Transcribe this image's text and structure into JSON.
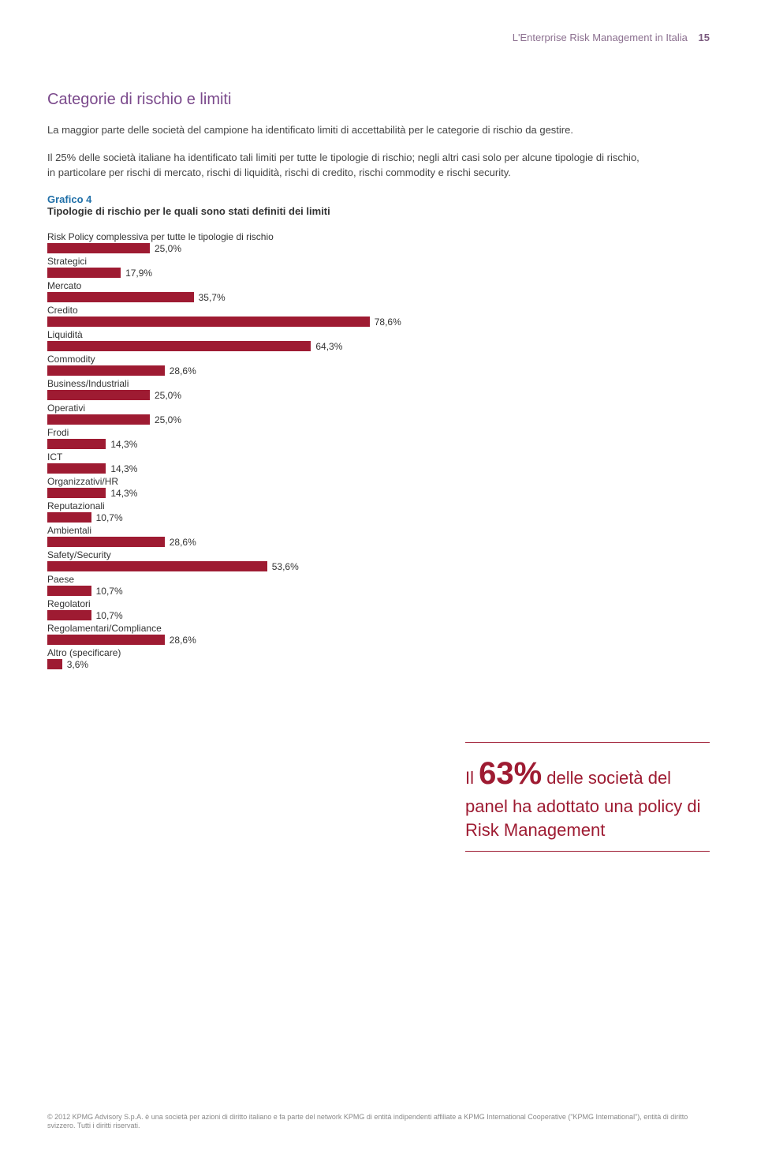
{
  "header": {
    "title": "L'Enterprise Risk Management in Italia",
    "page_number": "15"
  },
  "section": {
    "title": "Categorie di rischio e limiti",
    "para1": "La maggior parte delle società del campione ha identificato limiti di accettabilità per le categorie di rischio da gestire.",
    "para2": "Il 25% delle società italiane ha identificato tali limiti per tutte le tipologie di rischio; negli altri casi solo per alcune tipologie di rischio, in particolare per rischi di mercato, rischi di liquidità, rischi di credito, rischi commodity e rischi security."
  },
  "chart": {
    "caption_num": "Grafico 4",
    "caption_title": "Tipologie di rischio per le quali sono stati definiti dei limiti",
    "bar_color": "#9e1b32",
    "max_pct": 100,
    "bar_area_width": 520,
    "label_fontsize": 12,
    "value_fontsize": 12,
    "items": [
      {
        "label": "Risk Policy complessiva per tutte le tipologie di rischio",
        "value": 25.0,
        "value_label": "25,0%"
      },
      {
        "label": "Strategici",
        "value": 17.9,
        "value_label": "17,9%"
      },
      {
        "label": "Mercato",
        "value": 35.7,
        "value_label": "35,7%"
      },
      {
        "label": "Credito",
        "value": 78.6,
        "value_label": "78,6%"
      },
      {
        "label": "Liquidità",
        "value": 64.3,
        "value_label": "64,3%"
      },
      {
        "label": "Commodity",
        "value": 28.6,
        "value_label": "28,6%"
      },
      {
        "label": "Business/Industriali",
        "value": 25.0,
        "value_label": "25,0%"
      },
      {
        "label": "Operativi",
        "value": 25.0,
        "value_label": "25,0%"
      },
      {
        "label": "Frodi",
        "value": 14.3,
        "value_label": "14,3%"
      },
      {
        "label": "ICT",
        "value": 14.3,
        "value_label": "14,3%"
      },
      {
        "label": "Organizzativi/HR",
        "value": 14.3,
        "value_label": "14,3%"
      },
      {
        "label": "Reputazionali",
        "value": 10.7,
        "value_label": "10,7%"
      },
      {
        "label": "Ambientali",
        "value": 28.6,
        "value_label": "28,6%"
      },
      {
        "label": "Safety/Security",
        "value": 53.6,
        "value_label": "53,6%"
      },
      {
        "label": "Paese",
        "value": 10.7,
        "value_label": "10,7%"
      },
      {
        "label": "Regolatori",
        "value": 10.7,
        "value_label": "10,7%"
      },
      {
        "label": "Regolamentari/Compliance",
        "value": 28.6,
        "value_label": "28,6%"
      },
      {
        "label": "Altro (specificare)",
        "value": 3.6,
        "value_label": "3,6%"
      }
    ]
  },
  "callout": {
    "prefix": "Il ",
    "big": "63%",
    "rest": " delle società del panel ha adottato una policy di Risk Management"
  },
  "footer": {
    "text": "© 2012 KPMG Advisory S.p.A. è una società per azioni di diritto italiano e fa parte del network KPMG di entità indipendenti affiliate a KPMG International Cooperative (\"KPMG International\"), entità di diritto svizzero. Tutti i diritti riservati."
  }
}
